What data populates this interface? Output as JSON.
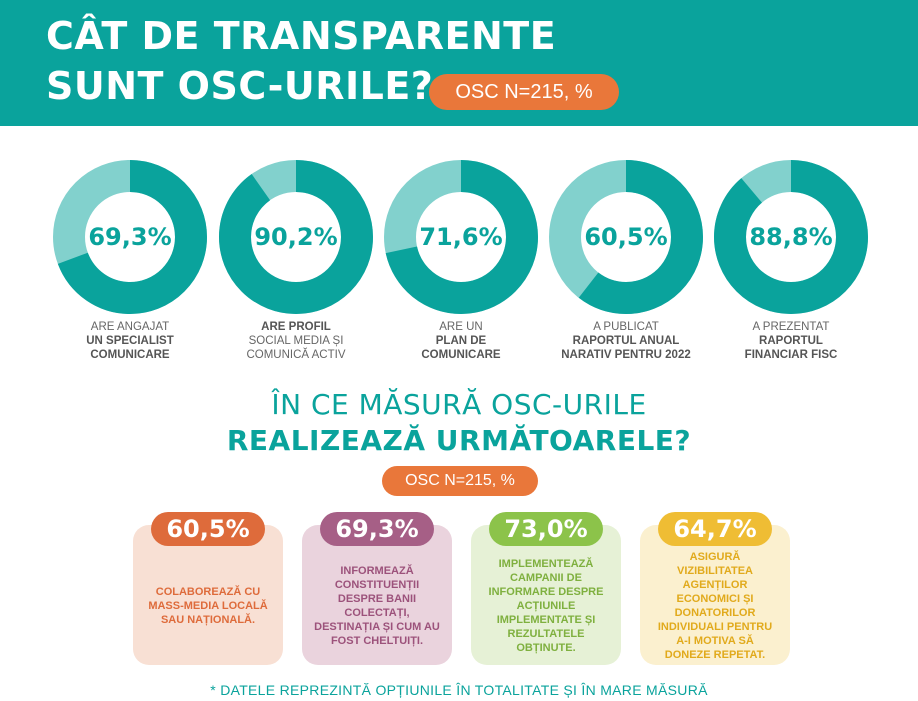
{
  "header": {
    "title_line1": "CÂT DE TRANSPARENTE",
    "title_line2": "SUNT OSC-URILE?",
    "sample_pill": "OSC N=215, %"
  },
  "colors": {
    "teal": "#0aa39c",
    "teal_light": "#82d1cd",
    "orange": "#e9773a"
  },
  "donuts": [
    {
      "value": 69.3,
      "value_label": "69,3%",
      "label_plain_1": "ARE ANGAJAT",
      "label_bold_1": "UN SPECIALIST",
      "label_bold_2": "COMUNICARE"
    },
    {
      "value": 90.2,
      "value_label": "90,2%",
      "label_bold_1": "ARE PROFIL",
      "label_plain_1": "SOCIAL MEDIA ȘI",
      "label_plain_2": "COMUNICĂ ACTIV"
    },
    {
      "value": 71.6,
      "value_label": "71,6%",
      "label_plain_1": "ARE UN",
      "label_bold_1": "PLAN DE",
      "label_bold_2": "COMUNICARE"
    },
    {
      "value": 60.5,
      "value_label": "60,5%",
      "label_plain_1": "A PUBLICAT",
      "label_bold_1": "RAPORTUL ANUAL",
      "label_bold_2": "NARATIV PENTRU 2022"
    },
    {
      "value": 88.8,
      "value_label": "88,8%",
      "label_plain_1": "A PREZENTAT",
      "label_bold_1": "RAPORTUL",
      "label_bold_2": "FINANCIAR FISC"
    }
  ],
  "section": {
    "title_line1": "ÎN CE MĂSURĂ OSC-URILE",
    "title_line2": "REALIZEAZĂ URMĂTOARELE?",
    "sample_pill": "OSC N=215, %"
  },
  "cards": [
    {
      "value_label": "60,5%",
      "text": "COLABOREAZĂ CU MASS-MEDIA LOCALĂ SAU NAȚIONALĂ.",
      "badge_color": "#de6b3b",
      "bg_color": "#f8e0d4",
      "text_color": "#de6b3b"
    },
    {
      "value_label": "69,3%",
      "text": "INFORMEAZĂ CONSTITUENȚII DESPRE BANII COLECTAȚI, DESTINAȚIA ȘI CUM AU FOST CHELTUIȚI.",
      "badge_color": "#a65f86",
      "bg_color": "#ead3dd",
      "text_color": "#9c527b"
    },
    {
      "value_label": "73,0%",
      "text": "IMPLEMENTEAZĂ CAMPANII DE INFORMARE DESPRE ACȚIUNILE IMPLEMENTATE ȘI REZULTATELE OBȚINUTE.",
      "badge_color": "#8cc34a",
      "bg_color": "#e6f1d6",
      "text_color": "#7fb03f"
    },
    {
      "value_label": "64,7%",
      "text": "ASIGURĂ VIZIBILITATEA AGENȚILOR ECONOMICI ȘI DONATORILOR INDIVIDUALI PENTRU A-I MOTIVA SĂ DONEZE REPETAT.",
      "badge_color": "#efbd34",
      "bg_color": "#fbf0cf",
      "text_color": "#e1aa1c"
    }
  ],
  "footnote": "* DATELE REPREZINTĂ OPȚIUNILE ÎN TOTALITATE ȘI ÎN MARE MĂSURĂ"
}
